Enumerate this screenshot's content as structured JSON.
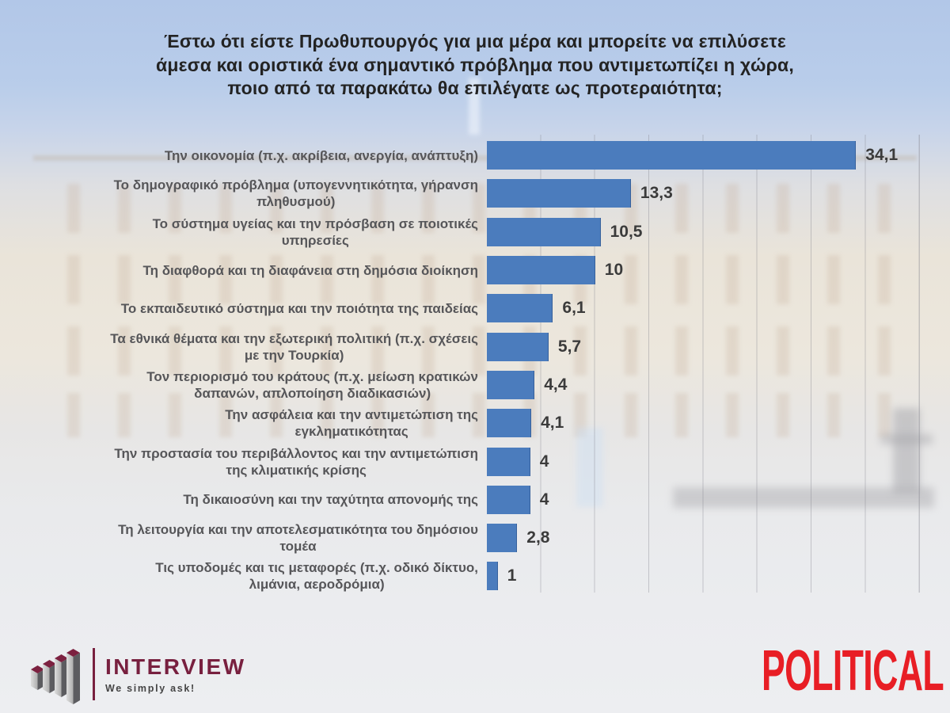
{
  "title": "Έστω ότι είστε Πρωθυπουργός για μια μέρα και μπορείτε να επιλύσετε\nάμεσα και οριστικά ένα σημαντικό πρόβλημα που αντιμετωπίζει η χώρα,\nποιο από τα παρακάτω θα επιλέγατε ως προτεραιότητα;",
  "chart_data": {
    "type": "bar",
    "orientation": "horizontal",
    "categories": [
      "Την οικονομία (π.χ. ακρίβεια, ανεργία, ανάπτυξη)",
      "Το δημογραφικό πρόβλημα (υπογεννητικότητα, γήρανση\nπληθυσμού)",
      "Το σύστημα υγείας και την πρόσβαση σε ποιοτικές\nυπηρεσίες",
      "Τη διαφθορά και τη διαφάνεια στη δημόσια διοίκηση",
      "Το εκπαιδευτικό σύστημα και την ποιότητα της παιδείας",
      "Τα εθνικά θέματα και την εξωτερική πολιτική (π.χ. σχέσεις\nμε την Τουρκία)",
      "Τον περιορισμό του κράτους (π.χ. μείωση κρατικών\nδαπανών, απλοποίηση διαδικασιών)",
      "Την ασφάλεια και την αντιμετώπιση της\nεγκληματικότητας",
      "Την προστασία του περιβάλλοντος και την αντιμετώπιση\nτης κλιματικής κρίσης",
      "Τη δικαιοσύνη και την ταχύτητα απονομής της",
      "Τη λειτουργία και την αποτελεσματικότητα του δημόσιου\nτομέα",
      "Τις υποδομές και τις μεταφορές (π.χ. οδικό δίκτυο,\nλιμάνια, αεροδρόμια)"
    ],
    "values": [
      34.1,
      13.3,
      10.5,
      10,
      6.1,
      5.7,
      4.4,
      4.1,
      4,
      4,
      2.8,
      1
    ],
    "value_labels": [
      "34,1",
      "13,3",
      "10,5",
      "10",
      "6,1",
      "5,7",
      "4,4",
      "4,1",
      "4",
      "4",
      "2,8",
      "1"
    ],
    "xlim": [
      0,
      40
    ],
    "grid": true,
    "gridline_step": 5,
    "bar_color": "#4b7cbd",
    "legend": false
  },
  "footer": {
    "interview": {
      "name": "INTERVIEW",
      "tagline": "We simply ask!",
      "brand_color": "#78203f"
    },
    "political": {
      "name": "POLITICAL",
      "brand_color": "#e81e25"
    }
  }
}
